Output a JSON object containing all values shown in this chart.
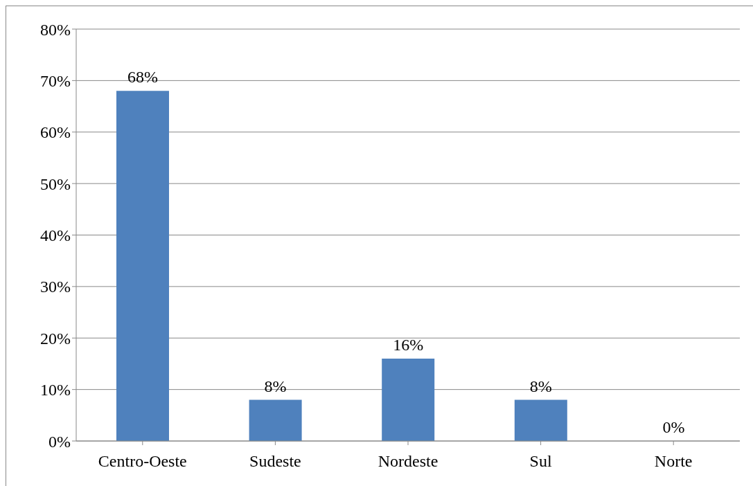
{
  "chart_data": {
    "type": "bar",
    "categories": [
      "Centro-Oeste",
      "Sudeste",
      "Nordeste",
      "Sul",
      "Norte"
    ],
    "values": [
      68,
      8,
      16,
      8,
      0
    ],
    "color": "#4f81bd",
    "value_labels": [
      "68%",
      "8%",
      "16%",
      "8%",
      "0%"
    ],
    "ylim": [
      0,
      80
    ],
    "yticks": [
      {
        "value": 0,
        "label": "0%"
      },
      {
        "value": 10,
        "label": "10%"
      },
      {
        "value": 20,
        "label": "20%"
      },
      {
        "value": 30,
        "label": "30%"
      },
      {
        "value": 40,
        "label": "40%"
      },
      {
        "value": 50,
        "label": "50%"
      },
      {
        "value": 60,
        "label": "60%"
      },
      {
        "value": 70,
        "label": "70%"
      },
      {
        "value": 80,
        "label": "80%"
      }
    ],
    "grid": "y",
    "legend": false
  }
}
